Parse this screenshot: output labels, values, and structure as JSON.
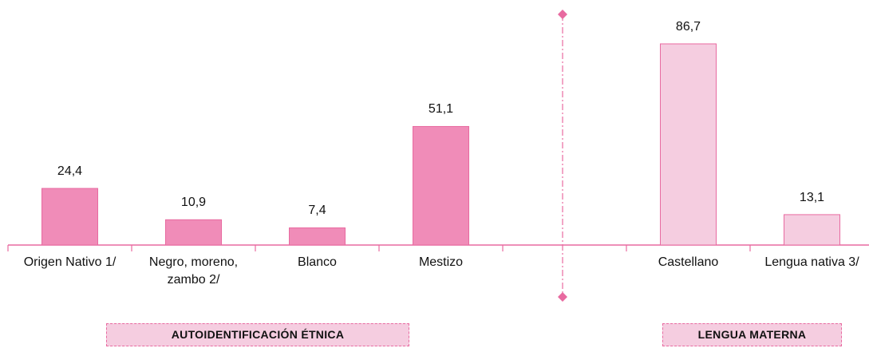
{
  "chart_data": {
    "type": "bar",
    "categories": [
      "Origen Nativo 1/",
      "Negro, moreno, zambo 2/",
      "Blanco",
      "Mestizo",
      null,
      "Castellano",
      "Lengua nativa 3/"
    ],
    "values": [
      24.4,
      10.9,
      7.4,
      51.1,
      null,
      86.7,
      13.1
    ],
    "value_labels": [
      "24,4",
      "10,9",
      "7,4",
      "51,1",
      null,
      "86,7",
      "13,1"
    ],
    "colors": [
      "#f08cb8",
      "#f08cb8",
      "#f08cb8",
      "#f08cb8",
      null,
      "#f5cde0",
      "#f5cde0"
    ],
    "group_labels": [
      "AUTOIDENTIFICACIÓN ÉTNICA",
      "LENGUA MATERNA"
    ]
  }
}
